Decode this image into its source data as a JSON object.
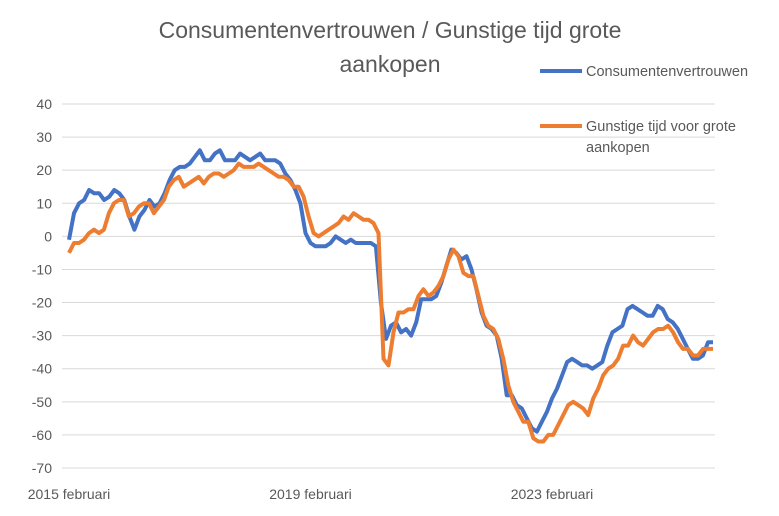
{
  "chart_data": {
    "type": "line",
    "title": "Consumentenvertrouwen  / Gunstige tijd grote aankopen",
    "title_lines": [
      "Consumentenvertrouwen  / Gunstige tijd grote",
      "aankopen"
    ],
    "xlabel": "",
    "ylabel": "",
    "ylim": [
      -70,
      40
    ],
    "yticks": [
      40,
      30,
      20,
      10,
      0,
      -10,
      -20,
      -30,
      -40,
      -50,
      -60,
      -70
    ],
    "xticks": [
      {
        "label": "2015 februari",
        "index": 0
      },
      {
        "label": "2019 februari",
        "index": 48
      },
      {
        "label": "2023 februari",
        "index": 96
      }
    ],
    "grid": true,
    "legend_position": "right",
    "series": [
      {
        "name": "Consumentenvertrouwen",
        "legend_lines": [
          "Consumentenvertrouwen"
        ],
        "color": "#4472C4",
        "values": [
          -1,
          7,
          10,
          11,
          14,
          13,
          13,
          11,
          12,
          14,
          13,
          11,
          6,
          2,
          6,
          8,
          11,
          9,
          10,
          13,
          17,
          20,
          21,
          21,
          22,
          24,
          26,
          23,
          23,
          25,
          26,
          23,
          23,
          23,
          25,
          24,
          23,
          24,
          25,
          23,
          23,
          23,
          22,
          19,
          17,
          14,
          10,
          1,
          -2,
          -3,
          -3,
          -3,
          -2,
          0,
          -1,
          -2,
          -1,
          -2,
          -2,
          -2,
          -2,
          -3,
          -20,
          -31,
          -27,
          -26,
          -29,
          -28,
          -30,
          -26,
          -19,
          -19,
          -19,
          -18,
          -14,
          -9,
          -4,
          -5,
          -7,
          -6,
          -10,
          -16,
          -23,
          -27,
          -28,
          -30,
          -37,
          -48,
          -48,
          -51,
          -52,
          -55,
          -58,
          -59,
          -56,
          -53,
          -49,
          -46,
          -42,
          -38,
          -37,
          -38,
          -39,
          -39,
          -40,
          -39,
          -38,
          -33,
          -29,
          -28,
          -27,
          -22,
          -21,
          -22,
          -23,
          -24,
          -24,
          -21,
          -22,
          -25,
          -26,
          -28,
          -31,
          -34,
          -37,
          -37,
          -36,
          -32,
          -32
        ]
      },
      {
        "name": "Gunstige tijd voor grote aankopen",
        "legend_lines": [
          "Gunstige tijd voor grote",
          "aankopen"
        ],
        "color": "#ED7D31",
        "values": [
          -5,
          -2,
          -2,
          -1,
          1,
          2,
          1,
          2,
          7,
          10,
          11,
          11,
          6,
          7,
          9,
          10,
          10,
          7,
          9,
          11,
          15,
          17,
          18,
          15,
          16,
          17,
          18,
          16,
          18,
          19,
          19,
          18,
          19,
          20,
          22,
          21,
          21,
          21,
          22,
          21,
          20,
          19,
          18,
          18,
          17,
          15,
          15,
          12,
          6,
          1,
          0,
          1,
          2,
          3,
          4,
          6,
          5,
          7,
          6,
          5,
          5,
          4,
          1,
          -37,
          -39,
          -29,
          -23,
          -23,
          -22,
          -22,
          -18,
          -16,
          -18,
          -17,
          -15,
          -12,
          -7,
          -4,
          -6,
          -11,
          -12,
          -12,
          -18,
          -24,
          -27,
          -28,
          -31,
          -37,
          -45,
          -50,
          -53,
          -56,
          -56,
          -61,
          -62,
          -62,
          -60,
          -60,
          -57,
          -54,
          -51,
          -50,
          -51,
          -52,
          -54,
          -49,
          -46,
          -42,
          -40,
          -39,
          -37,
          -33,
          -33,
          -30,
          -32,
          -33,
          -31,
          -29,
          -28,
          -28,
          -27,
          -29,
          -32,
          -34,
          -34,
          -36,
          -36,
          -34,
          -34,
          -34
        ]
      }
    ]
  }
}
